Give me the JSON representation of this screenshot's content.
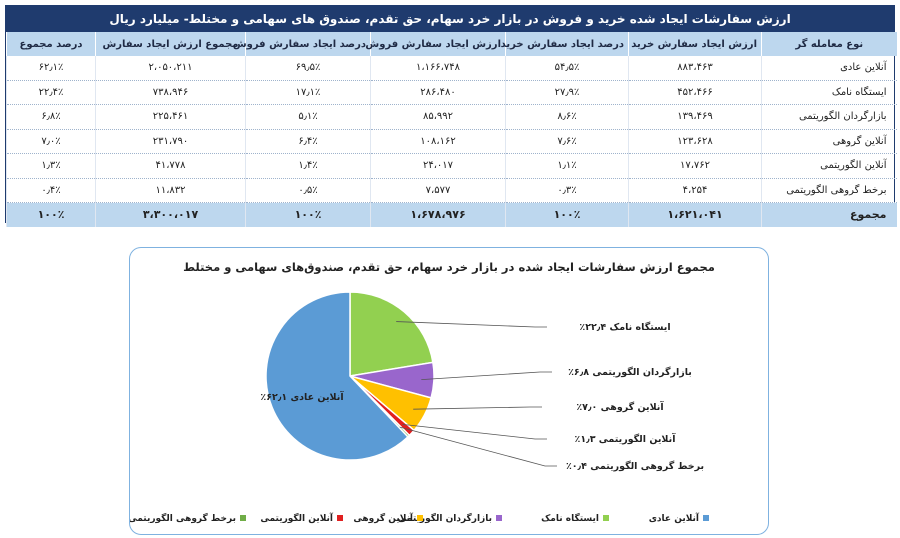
{
  "table": {
    "title": "ارزش سفارشات ایجاد شده خرید و فروش در بازار خرد سهام، حق تقدم، صندوق های سهامی و مختلط- میلیارد ریال",
    "headers": [
      "نوع معامله گر",
      "ارزش ایجاد سفارش خرید",
      "درصد ایجاد سفارش خرید",
      "ارزش ایجاد سفارش فروش",
      "درصد ایجاد سفارش فروش",
      "مجموع ارزش ایجاد سفارش",
      "درصد مجموع"
    ],
    "rows": [
      [
        "آنلاین عادی",
        "۸۸۳،۴۶۳",
        "۵۴٫۵٪",
        "۱،۱۶۶،۷۴۸",
        "۶۹٫۵٪",
        "۲،۰۵۰،۲۱۱",
        "۶۲٫۱٪"
      ],
      [
        "ایستگاه نامک",
        "۴۵۲،۴۶۶",
        "۲۷٫۹٪",
        "۲۸۶،۴۸۰",
        "۱۷٫۱٪",
        "۷۳۸،۹۴۶",
        "۲۲٫۴٪"
      ],
      [
        "بازارگردان الگوریتمی",
        "۱۳۹،۴۶۹",
        "۸٫۶٪",
        "۸۵،۹۹۲",
        "۵٫۱٪",
        "۲۲۵،۴۶۱",
        "۶٫۸٪"
      ],
      [
        "آنلاین گروهی",
        "۱۲۳،۶۲۸",
        "۷٫۶٪",
        "۱۰۸،۱۶۲",
        "۶٫۴٪",
        "۲۳۱،۷۹۰",
        "۷٫۰٪"
      ],
      [
        "آنلاین الگوریتمی",
        "۱۷،۷۶۲",
        "۱٫۱٪",
        "۲۴،۰۱۷",
        "۱٫۴٪",
        "۴۱،۷۷۸",
        "۱٫۳٪"
      ],
      [
        "برخط گروهی الگوریتمی",
        "۴،۲۵۴",
        "۰٫۳٪",
        "۷،۵۷۷",
        "۰٫۵٪",
        "۱۱،۸۳۲",
        "۰٫۴٪"
      ]
    ],
    "total": [
      "مجموع",
      "۱،۶۲۱،۰۴۱",
      "۱۰۰٪",
      "۱،۶۷۸،۹۷۶",
      "۱۰۰٪",
      "۳،۳۰۰،۰۱۷",
      "۱۰۰٪"
    ]
  },
  "chart_data": {
    "type": "pie",
    "title": "مجموع ارزش سفارشات ایجاد شده در بازار خرد سهام، حق تقدم، صندوق‌های سهامی و مختلط",
    "slices": [
      {
        "name": "آنلاین عادی",
        "value": 62.1,
        "label": "آنلاین عادی ۶۲٫۱٪",
        "color": "#5b9bd5"
      },
      {
        "name": "ایستگاه نامک",
        "value": 22.4,
        "label": "ایستگاه نامک ۲۲٫۴٪",
        "color": "#92d050"
      },
      {
        "name": "بازارگردان الگوریتمی",
        "value": 6.8,
        "label": "بازارگردان الگوریتمی ۶٫۸٪",
        "color": "#9966cc"
      },
      {
        "name": "آنلاین گروهی",
        "value": 7.0,
        "label": "آنلاین گروهی ۷٫۰٪",
        "color": "#ffc000"
      },
      {
        "name": "آنلاین الگوریتمی",
        "value": 1.3,
        "label": "آنلاین الگوریتمی ۱٫۳٪",
        "color": "#e02020"
      },
      {
        "name": "برخط گروهی الگوریتمی",
        "value": 0.4,
        "label": "برخط گروهی الگوریتمی ۰٫۴٪",
        "color": "#70ad47"
      }
    ],
    "legend_position": "bottom"
  }
}
